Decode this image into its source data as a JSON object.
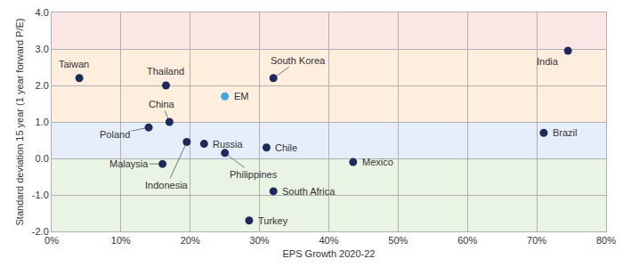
{
  "chart_data": {
    "type": "scatter",
    "x_label": "EPS Growth 2020-22",
    "y_label": "Standard deviation 15 year (1 year forward P/E)",
    "labels": [
      "Taiwan",
      "Thailand",
      "South Korea",
      "EM",
      "India",
      "China",
      "Poland",
      "Brazil",
      "Russia",
      "Malaysia",
      "Indonesia",
      "Chile",
      "Philippines",
      "Mexico",
      "South Africa",
      "Turkey"
    ],
    "x": [
      4,
      16.5,
      32,
      25,
      74.5,
      17,
      14,
      71,
      22,
      16,
      19.5,
      31,
      25,
      43.5,
      32,
      28.5
    ],
    "y": [
      2.2,
      2.0,
      2.2,
      1.7,
      2.95,
      1.0,
      0.85,
      0.7,
      0.4,
      -0.15,
      0.45,
      0.3,
      0.15,
      -0.1,
      -0.9,
      -1.7
    ],
    "colors": [
      "#1f2a5c",
      "#1f2a5c",
      "#1f2a5c",
      "#3fa9e0",
      "#1f2a5c",
      "#1f2a5c",
      "#1f2a5c",
      "#1f2a5c",
      "#1f2a5c",
      "#1f2a5c",
      "#1f2a5c",
      "#1f2a5c",
      "#1f2a5c",
      "#1f2a5c",
      "#1f2a5c",
      "#1f2a5c"
    ],
    "bands": [
      {
        "from": 3,
        "to": 4,
        "color": "#fde6e6"
      },
      {
        "from": 1,
        "to": 3,
        "color": "#fdeedd"
      },
      {
        "from": 0,
        "to": 1,
        "color": "#e6eefa"
      },
      {
        "from": -2,
        "to": 0,
        "color": "#e9f4e4"
      }
    ],
    "xlim": [
      0,
      80
    ],
    "xticks": [
      {
        "value": 0,
        "label": "0%"
      },
      {
        "value": 10,
        "label": "10%"
      },
      {
        "value": 20,
        "label": "20%"
      },
      {
        "value": 30,
        "label": "30%"
      },
      {
        "value": 40,
        "label": "40%"
      },
      {
        "value": 50,
        "label": "50%"
      },
      {
        "value": 60,
        "label": "60%"
      },
      {
        "value": 70,
        "label": "70%"
      },
      {
        "value": 80,
        "label": "80%"
      }
    ],
    "ylim": [
      -2,
      4
    ],
    "yticks": [
      {
        "value": -2,
        "label": "-2.0"
      },
      {
        "value": -1,
        "label": "-1.0"
      },
      {
        "value": 0,
        "label": "0.0"
      },
      {
        "value": 1,
        "label": "1.0"
      },
      {
        "value": 2,
        "label": "2.0"
      },
      {
        "value": 3,
        "label": "3.0"
      },
      {
        "value": 4,
        "label": "4.0"
      }
    ],
    "grid": true
  }
}
